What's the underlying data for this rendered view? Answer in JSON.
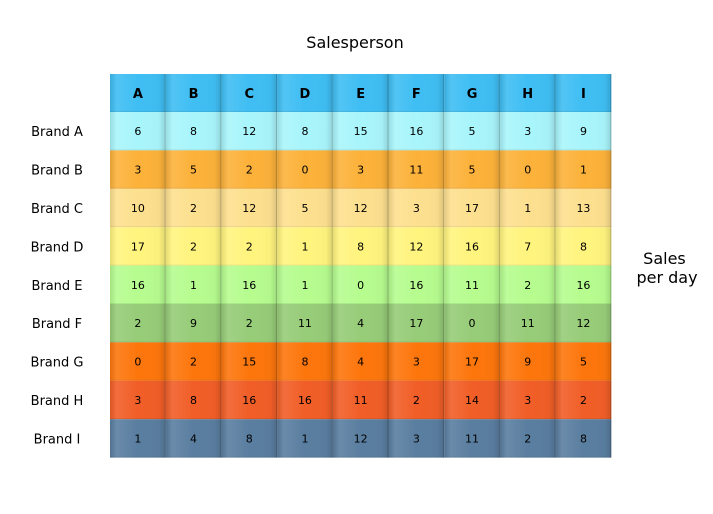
{
  "chart_data": {
    "type": "table",
    "title": "Salesperson",
    "side_label": [
      "Sales",
      "per day"
    ],
    "columns": [
      "A",
      "B",
      "C",
      "D",
      "E",
      "F",
      "G",
      "H",
      "I"
    ],
    "rows": [
      "Brand A",
      "Brand B",
      "Brand C",
      "Brand D",
      "Brand E",
      "Brand F",
      "Brand G",
      "Brand H",
      "Brand I"
    ],
    "values": [
      [
        6,
        8,
        12,
        8,
        15,
        16,
        5,
        3,
        9
      ],
      [
        3,
        5,
        2,
        0,
        3,
        11,
        5,
        0,
        1
      ],
      [
        10,
        2,
        12,
        5,
        12,
        3,
        17,
        1,
        13
      ],
      [
        17,
        2,
        2,
        1,
        8,
        12,
        16,
        7,
        8
      ],
      [
        16,
        1,
        16,
        1,
        0,
        16,
        11,
        2,
        16
      ],
      [
        2,
        9,
        2,
        11,
        4,
        17,
        0,
        11,
        12
      ],
      [
        0,
        2,
        15,
        8,
        4,
        3,
        17,
        9,
        5
      ],
      [
        3,
        8,
        16,
        16,
        11,
        2,
        14,
        3,
        2
      ],
      [
        1,
        4,
        8,
        1,
        12,
        3,
        11,
        2,
        8
      ]
    ],
    "header_color": "#3fbef3",
    "row_colors": [
      "#a8f5fb",
      "#fcb23a",
      "#fde08f",
      "#fff47e",
      "#b6fc8f",
      "#97cc78",
      "#fd760c",
      "#f15e27",
      "#5a7ea0"
    ]
  }
}
